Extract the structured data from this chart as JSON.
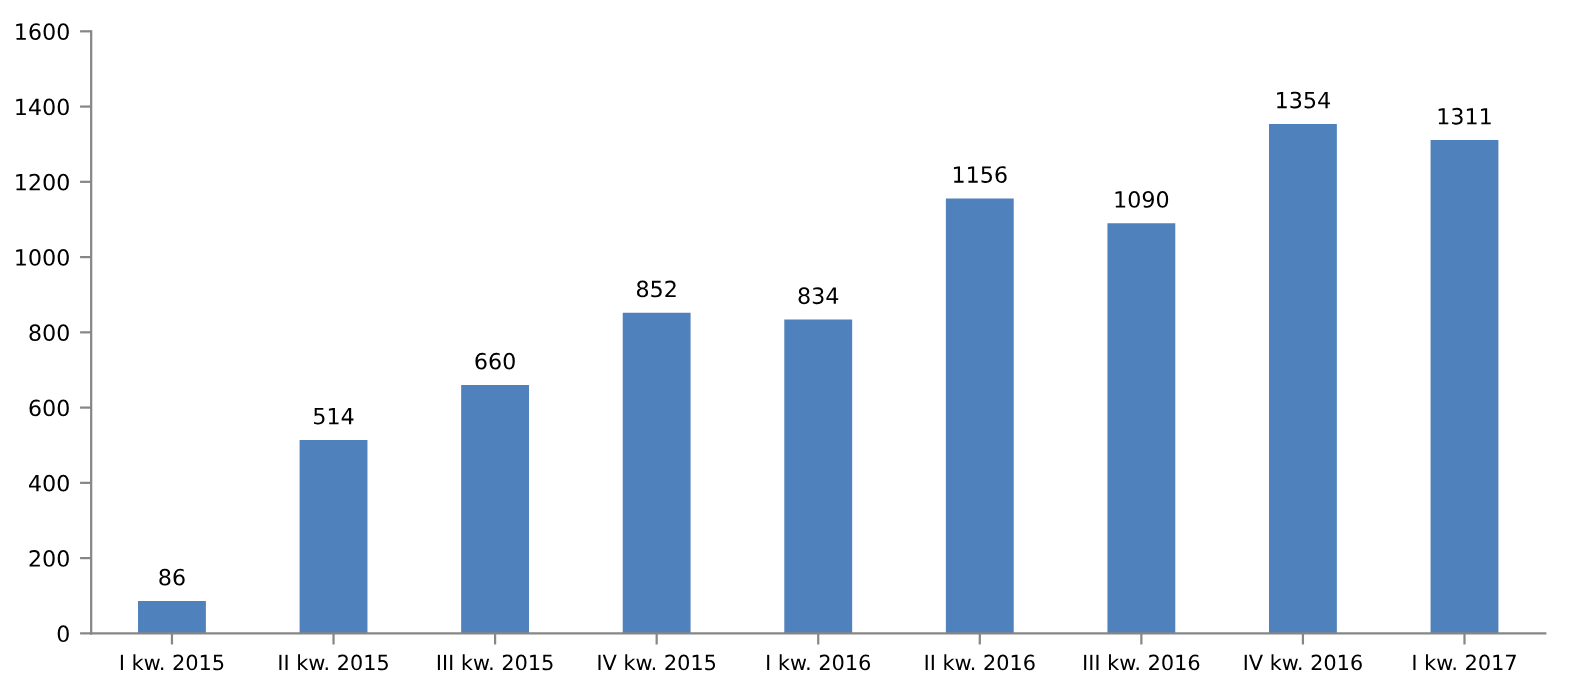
{
  "chart_data": {
    "type": "bar",
    "categories": [
      "I kw. 2015",
      "II kw. 2015",
      "III kw. 2015",
      "IV kw. 2015",
      "I kw. 2016",
      "II kw. 2016",
      "III kw. 2016",
      "IV kw. 2016",
      "I kw. 2017"
    ],
    "values": [
      86,
      514,
      660,
      852,
      834,
      1156,
      1090,
      1354,
      1311
    ],
    "color": "#4f81bd",
    "ylim": [
      0,
      1600
    ],
    "yticks": [
      0,
      200,
      400,
      600,
      800,
      1000,
      1200,
      1400,
      1600
    ],
    "data_labels": true
  }
}
